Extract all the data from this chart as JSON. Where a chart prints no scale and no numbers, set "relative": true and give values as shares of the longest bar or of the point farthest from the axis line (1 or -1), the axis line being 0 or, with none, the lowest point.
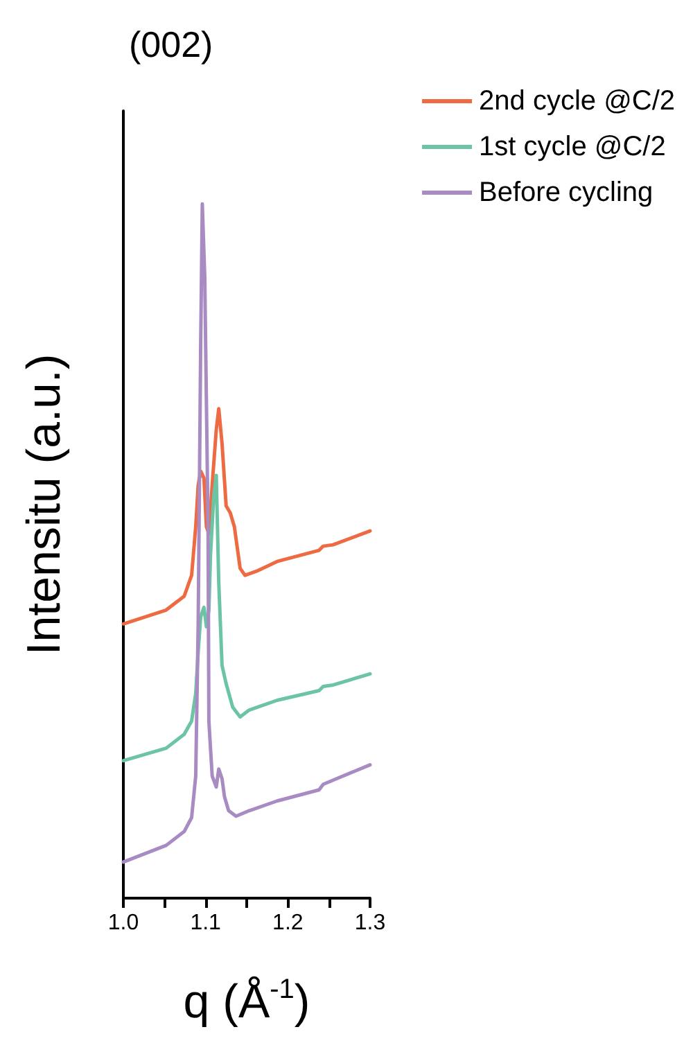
{
  "chart_data": {
    "type": "line",
    "title": "(002)",
    "xlabel": "q (Å$^{-1}$)",
    "ylabel": "Intensitu (a.u.)",
    "relative": true,
    "xlim": [
      1.0,
      1.3
    ],
    "xticks": [
      {
        "value": 1.0,
        "label": "1.0"
      },
      {
        "value": 1.05,
        "label": null
      },
      1.1,
      {
        "value": 1.15,
        "label": null
      },
      1.2,
      {
        "value": 1.25,
        "label": null
      },
      1.3
    ],
    "legend": "top right",
    "grid": false,
    "marker": "none",
    "line_style": "solid",
    "series": [
      {
        "name": "2nd cycle @C/2",
        "color": "#ee6a42",
        "x": [
          1.0,
          1.052,
          1.074,
          1.083,
          1.088,
          1.091,
          1.094,
          1.098,
          1.101,
          1.104,
          1.108,
          1.113,
          1.116,
          1.12,
          1.125,
          1.13,
          1.135,
          1.142,
          1.148,
          1.162,
          1.187,
          1.238,
          1.243,
          1.255,
          1.3
        ],
        "values": [
          0.395,
          0.415,
          0.435,
          0.465,
          0.535,
          0.595,
          0.615,
          0.605,
          0.535,
          0.525,
          0.595,
          0.675,
          0.705,
          0.655,
          0.565,
          0.555,
          0.535,
          0.475,
          0.465,
          0.471,
          0.485,
          0.501,
          0.507,
          0.509,
          0.529
        ]
      },
      {
        "name": "1st cycle @C/2",
        "color": "#6cc4a4",
        "x": [
          1.0,
          1.052,
          1.074,
          1.083,
          1.088,
          1.091,
          1.094,
          1.098,
          1.101,
          1.104,
          1.106,
          1.11,
          1.113,
          1.116,
          1.12,
          1.125,
          1.133,
          1.142,
          1.153,
          1.187,
          1.238,
          1.243,
          1.255,
          1.3
        ],
        "values": [
          0.198,
          0.216,
          0.236,
          0.255,
          0.295,
          0.355,
          0.405,
          0.419,
          0.391,
          0.415,
          0.495,
          0.58,
          0.609,
          0.455,
          0.335,
          0.309,
          0.275,
          0.261,
          0.271,
          0.285,
          0.299,
          0.305,
          0.307,
          0.323
        ]
      },
      {
        "name": "Before cycling",
        "color": "#a98bc4",
        "x": [
          1.0,
          1.052,
          1.074,
          1.083,
          1.088,
          1.091,
          1.094,
          1.096,
          1.099,
          1.103,
          1.104,
          1.108,
          1.113,
          1.116,
          1.12,
          1.123,
          1.128,
          1.137,
          1.153,
          1.187,
          1.238,
          1.243,
          1.255,
          1.3
        ],
        "values": [
          0.052,
          0.076,
          0.096,
          0.116,
          0.176,
          0.395,
          0.794,
          1,
          0.894,
          0.535,
          0.255,
          0.176,
          0.16,
          0.186,
          0.172,
          0.146,
          0.126,
          0.118,
          0.126,
          0.14,
          0.156,
          0.164,
          0.17,
          0.192
        ]
      }
    ]
  }
}
